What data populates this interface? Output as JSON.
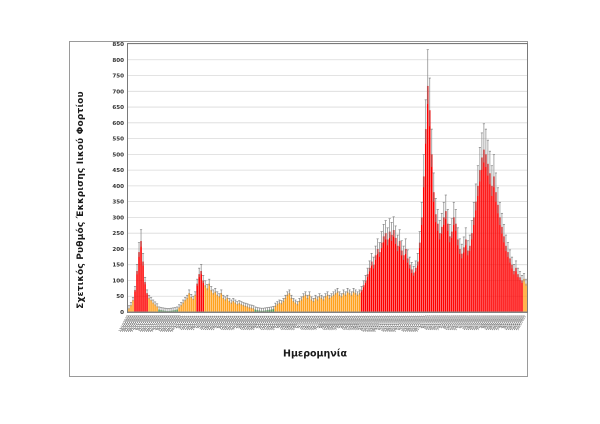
{
  "chart_data": {
    "type": "bar",
    "title": "",
    "xlabel": "Ημερομηνία",
    "ylabel": "Σχετικός Ρυθμός Έκκρισης Ιικού Φορτίου",
    "ylim": [
      0,
      850
    ],
    "ytick_step": 50,
    "grid": true,
    "legend": "none",
    "bar_colors": {
      "r": "#FE0000",
      "o": "#FFA11E",
      "g": "#4AA147"
    },
    "error_bar_color": "#848484",
    "gridline_color": "#DADADA",
    "axis_color": "#8C8C8C",
    "plot_border_color": "#7A7A7A",
    "error_rule": {
      "frac": 0.16,
      "min": 8
    },
    "x_axis": {
      "start_date": "2020-10-13",
      "step_days": 3,
      "label_format": "D/M/YYYY",
      "note": "rotated daily-sample date labels; illegible at source resolution"
    },
    "values": [
      12,
      22,
      38,
      70,
      130,
      190,
      225,
      160,
      95,
      60,
      45,
      38,
      30,
      24,
      18,
      8,
      6,
      5,
      4,
      3,
      3,
      4,
      5,
      6,
      8,
      15,
      22,
      30,
      38,
      45,
      60,
      48,
      42,
      55,
      90,
      120,
      130,
      100,
      85,
      75,
      90,
      70,
      60,
      65,
      55,
      50,
      60,
      45,
      40,
      45,
      35,
      30,
      35,
      30,
      25,
      28,
      25,
      22,
      20,
      18,
      15,
      14,
      12,
      8,
      6,
      5,
      4,
      4,
      5,
      6,
      7,
      8,
      10,
      20,
      25,
      30,
      28,
      35,
      45,
      55,
      60,
      45,
      35,
      30,
      25,
      35,
      40,
      50,
      55,
      45,
      55,
      40,
      35,
      45,
      40,
      50,
      45,
      40,
      50,
      55,
      45,
      50,
      55,
      60,
      65,
      55,
      50,
      60,
      55,
      65,
      60,
      55,
      65,
      60,
      55,
      60,
      70,
      85,
      100,
      120,
      140,
      160,
      150,
      180,
      200,
      190,
      220,
      240,
      250,
      230,
      255,
      245,
      260,
      235,
      210,
      225,
      195,
      180,
      200,
      170,
      150,
      135,
      125,
      140,
      160,
      220,
      300,
      430,
      580,
      717,
      640,
      500,
      380,
      310,
      280,
      250,
      270,
      300,
      320,
      280,
      240,
      255,
      300,
      280,
      230,
      200,
      185,
      205,
      230,
      195,
      210,
      250,
      300,
      350,
      400,
      450,
      490,
      515,
      500,
      470,
      440,
      400,
      430,
      380,
      340,
      300,
      270,
      240,
      210,
      190,
      170,
      150,
      130,
      140,
      120,
      110,
      100,
      105,
      90
    ],
    "colors": "ooorrrrrrroooooggggggggggooooooooorrrrooooooooooooooooooooooooogggggggggg ooooooooooooooooooooooooooooooooooooooooooo rrrrrrrrrrrrrrrrrrrrrrrrrrrrrrrrrrrrrrrrrrrrrrrrrrrrrrrrrrrrrrrrrrrrrrrrrrrrrrrrr oo"
  }
}
